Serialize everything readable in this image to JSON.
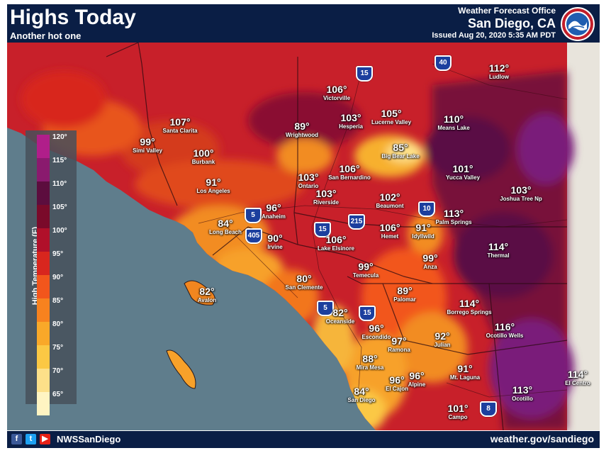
{
  "header": {
    "title": "Highs Today",
    "subtitle": "Another hot one",
    "office_title": "Weather Forecast Office",
    "office_city": "San Diego, CA",
    "issued": "Issued Aug 20, 2020 5:35 AM PDT",
    "logo_icon": "noaa-nws-logo"
  },
  "colors": {
    "header_bg": "#0a1e45",
    "ocean": "#5f7d8c",
    "ocean_deep": "#4f6b7a",
    "land_base": "#c8202a",
    "hot": "#6a0d3c",
    "very_hot": "#4a0a48",
    "extreme": "#7a1a7a",
    "warm": "#f0701f",
    "mild": "#f7a12a",
    "cool": "#fbd25a",
    "snow_grey": "#e8e4dc"
  },
  "legend": {
    "title": "High Temperature (F)",
    "ticks": [
      "120°",
      "115°",
      "110°",
      "105°",
      "100°",
      "95°",
      "90°",
      "85°",
      "80°",
      "75°",
      "70°",
      "65°"
    ],
    "colors": [
      "#b01e8a",
      "#8a1a6e",
      "#5c0d3e",
      "#7a0a2a",
      "#b0102a",
      "#d8261e",
      "#f2561c",
      "#f7821f",
      "#f9a829",
      "#fbc844",
      "#fde089",
      "#fff4c2"
    ]
  },
  "cities": [
    {
      "name": "Ludlow",
      "temp": "112°"
    },
    {
      "name": "Victorville",
      "temp": "106°"
    },
    {
      "name": "Hesperia",
      "temp": "103°"
    },
    {
      "name": "Lucerne Valley",
      "temp": "105°"
    },
    {
      "name": "Means Lake",
      "temp": "110°"
    },
    {
      "name": "Santa Clarita",
      "temp": "107°"
    },
    {
      "name": "Simi Valley",
      "temp": "99°"
    },
    {
      "name": "Wrightwood",
      "temp": "89°"
    },
    {
      "name": "Burbank",
      "temp": "100°"
    },
    {
      "name": "Big Bear Lake",
      "temp": "85°"
    },
    {
      "name": "San Bernardino",
      "temp": "106°"
    },
    {
      "name": "Ontario",
      "temp": "103°"
    },
    {
      "name": "Yucca Valley",
      "temp": "101°"
    },
    {
      "name": "Los Angeles",
      "temp": "91°"
    },
    {
      "name": "Riverside",
      "temp": "103°"
    },
    {
      "name": "Joshua Tree Np",
      "temp": "103°"
    },
    {
      "name": "Beaumont",
      "temp": "102°"
    },
    {
      "name": "Anaheim",
      "temp": "96°"
    },
    {
      "name": "Palm Springs",
      "temp": "113°"
    },
    {
      "name": "Long Beach",
      "temp": "84°"
    },
    {
      "name": "Hemet",
      "temp": "106°"
    },
    {
      "name": "Idyllwild",
      "temp": "91°"
    },
    {
      "name": "Irvine",
      "temp": "90°"
    },
    {
      "name": "Lake Elsinore",
      "temp": "106°"
    },
    {
      "name": "Thermal",
      "temp": "114°"
    },
    {
      "name": "Anza",
      "temp": "99°"
    },
    {
      "name": "Temecula",
      "temp": "99°"
    },
    {
      "name": "San Clemente",
      "temp": "80°"
    },
    {
      "name": "Avalon",
      "temp": "82°"
    },
    {
      "name": "Palomar",
      "temp": "89°"
    },
    {
      "name": "Borrego Springs",
      "temp": "114°"
    },
    {
      "name": "Oceanside",
      "temp": "82°"
    },
    {
      "name": "Escondido",
      "temp": "96°"
    },
    {
      "name": "Ocotillo Wells",
      "temp": "116°"
    },
    {
      "name": "Ramona",
      "temp": "97°"
    },
    {
      "name": "Julian",
      "temp": "92°"
    },
    {
      "name": "Mira Mesa",
      "temp": "88°"
    },
    {
      "name": "Mt. Laguna",
      "temp": "91°"
    },
    {
      "name": "El Cajon",
      "temp": "96°"
    },
    {
      "name": "Alpine",
      "temp": "96°"
    },
    {
      "name": "El Centro",
      "temp": "114°"
    },
    {
      "name": "San Diego",
      "temp": "84°"
    },
    {
      "name": "Ocotillo",
      "temp": "113°"
    },
    {
      "name": "Campo",
      "temp": "101°"
    }
  ],
  "highways": [
    "15",
    "40",
    "5",
    "405",
    "215",
    "10",
    "15",
    "5",
    "15",
    "8"
  ],
  "footer": {
    "handle": "NWSSanDiego",
    "website": "weather.gov/sandiego",
    "icons": [
      "facebook-icon",
      "twitter-icon",
      "youtube-icon"
    ]
  }
}
